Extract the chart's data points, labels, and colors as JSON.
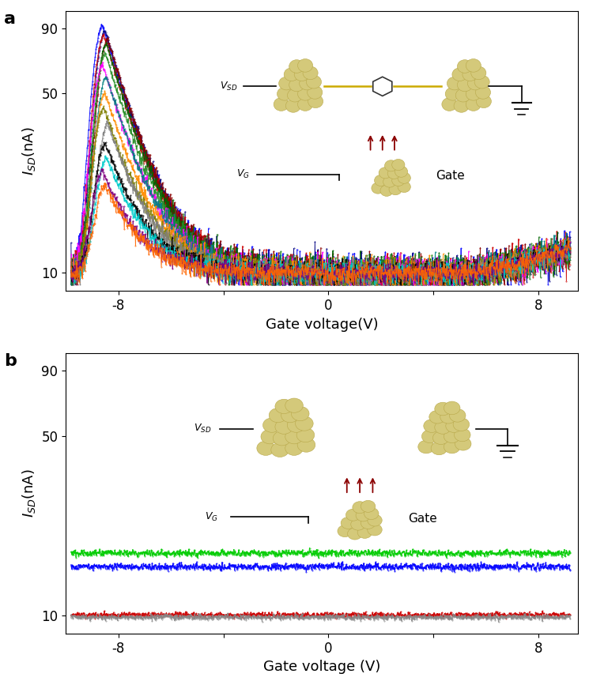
{
  "panel_a": {
    "xlabel": "Gate voltage(V)",
    "ylabel": "$I_{SD}$(nA)",
    "xlim": [
      -10.0,
      9.5
    ],
    "ylim": [
      8.5,
      105
    ],
    "xticks": [
      -8,
      -4,
      0,
      4,
      8
    ],
    "yticks": [
      10,
      50,
      90
    ],
    "yticklabels": [
      "10",
      "50",
      "90"
    ],
    "colors": [
      "#0000FF",
      "#000080",
      "#CC0000",
      "#8B0000",
      "#006400",
      "#228B22",
      "#FF00FF",
      "#008080",
      "#FF8C00",
      "#808000",
      "#808080",
      "#000000",
      "#00CCCC",
      "#800080",
      "#FF6600"
    ],
    "peaks": [
      92,
      88,
      85,
      82,
      78,
      72,
      65,
      58,
      50,
      44,
      38,
      32,
      28,
      25,
      22
    ],
    "peak_x": [
      -8.6,
      -8.5,
      -8.55,
      -8.4,
      -8.45,
      -8.5,
      -8.6,
      -8.45,
      -8.5,
      -8.55,
      -8.4,
      -8.5,
      -8.45,
      -8.6,
      -8.5
    ]
  },
  "panel_b": {
    "xlabel": "Gate voltage (V)",
    "ylabel": "$I_{SD}$(nA)",
    "xlim": [
      -10.0,
      9.5
    ],
    "ylim": [
      8.5,
      105
    ],
    "xticks": [
      -8,
      -4,
      0,
      4,
      8
    ],
    "yticks": [
      10,
      50,
      90
    ],
    "yticklabels": [
      "10",
      "50",
      "90"
    ],
    "line_colors": [
      "#00CC00",
      "#0000FF",
      "#CC0000",
      "#888888"
    ],
    "line_levels": [
      17.5,
      15.5,
      10.05,
      9.85
    ]
  },
  "label_a": "a",
  "label_b": "b",
  "gold_color": "#D4C97A",
  "gold_edge": "#B8A84A"
}
